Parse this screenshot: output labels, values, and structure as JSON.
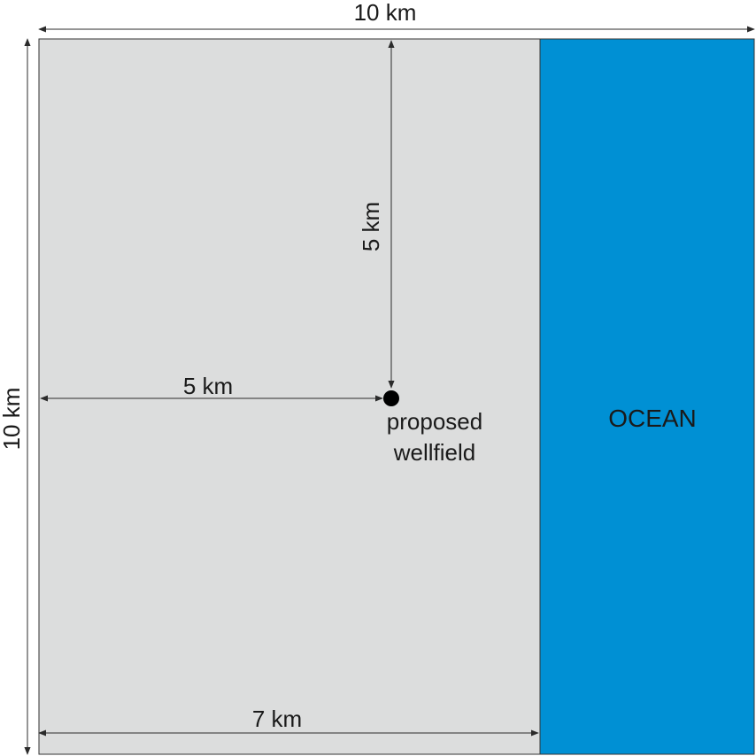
{
  "diagram": {
    "top_dimension": "10 km",
    "left_dimension": "10 km",
    "vertical_distance": "5 km",
    "horizontal_distance": "5 km",
    "land_width": "7 km",
    "wellfield_label_line1": "proposed",
    "wellfield_label_line2": "wellfield",
    "ocean_label": "OCEAN"
  },
  "colors": {
    "land": "#dcdddd",
    "ocean": "#0090d4",
    "outline": "#333333",
    "wellfield_marker": "#000000"
  }
}
